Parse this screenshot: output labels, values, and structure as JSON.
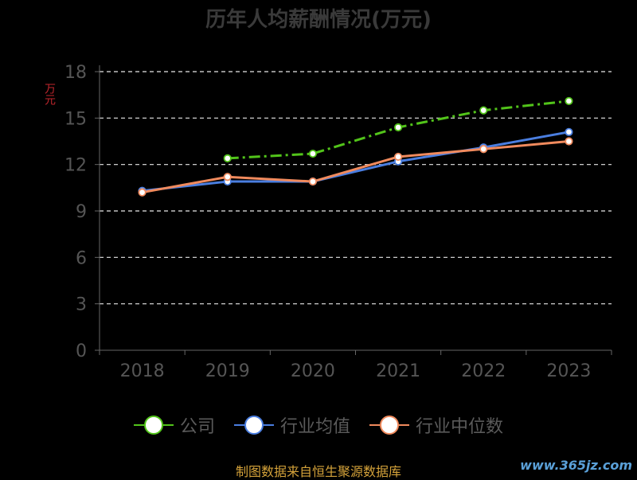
{
  "chart_data": {
    "type": "line",
    "title": "历年人均薪酬情况(万元)",
    "ylabel": "万元",
    "categories": [
      "2018",
      "2019",
      "2020",
      "2021",
      "2022",
      "2023"
    ],
    "ylim": [
      0,
      18
    ],
    "yticks": [
      0,
      3,
      6,
      9,
      12,
      15,
      18
    ],
    "grid": true,
    "legend_position": "bottom",
    "series": [
      {
        "name": "公司",
        "color": "#52c41a",
        "dashed": true,
        "values": [
          null,
          12.4,
          12.7,
          14.4,
          15.5,
          16.1
        ]
      },
      {
        "name": "行业均值",
        "color": "#4a7ee0",
        "dashed": false,
        "values": [
          10.3,
          10.9,
          10.9,
          12.2,
          13.1,
          14.1
        ]
      },
      {
        "name": "行业中位数",
        "color": "#f08a5d",
        "dashed": false,
        "values": [
          10.2,
          11.2,
          10.9,
          12.5,
          13.0,
          13.5
        ]
      }
    ]
  },
  "source": "制图数据来自恒生聚源数据库",
  "watermark": "www.365jz.com"
}
